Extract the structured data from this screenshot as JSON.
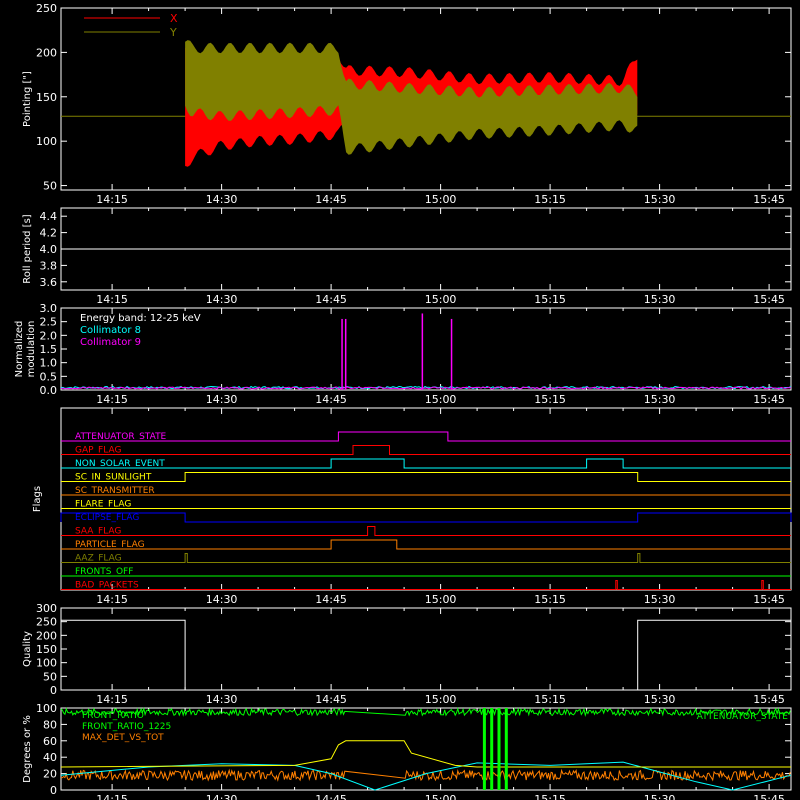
{
  "x_ticks": [
    "14:15",
    "14:30",
    "14:45",
    "15:00",
    "15:15",
    "15:30",
    "15:45"
  ],
  "chart_data": [
    {
      "type": "area",
      "ylabel": "Pointing [\"]",
      "ylim": [
        45,
        250
      ],
      "yticks": [
        "50",
        "100",
        "150",
        "200",
        "250"
      ],
      "baseline": 128,
      "series": [
        {
          "name": "X",
          "color": "#ff0000",
          "time": [
            "14:25",
            "14:26",
            "14:30",
            "14:35",
            "14:40",
            "14:46",
            "14:47",
            "14:55",
            "15:05",
            "15:15",
            "15:25",
            "15:27"
          ],
          "low": [
            72,
            82,
            95,
            100,
            102,
            108,
            120,
            115,
            125,
            128,
            132,
            125
          ],
          "high": [
            205,
            200,
            188,
            190,
            195,
            200,
            180,
            178,
            170,
            172,
            168,
            198
          ]
        },
        {
          "name": "Y",
          "color": "#808000",
          "time": [
            "14:25",
            "14:26",
            "14:30",
            "14:35",
            "14:40",
            "14:46",
            "14:47",
            "14:55",
            "15:05",
            "15:15",
            "15:25",
            "15:27"
          ],
          "low": [
            140,
            132,
            128,
            130,
            132,
            135,
            90,
            98,
            108,
            112,
            118,
            112
          ],
          "high": [
            212,
            205,
            205,
            205,
            205,
            205,
            165,
            160,
            155,
            158,
            160,
            155
          ]
        }
      ]
    },
    {
      "type": "line",
      "ylabel": "Roll period [s]",
      "ylim": [
        3.5,
        4.5
      ],
      "yticks": [
        "3.6",
        "3.8",
        "4.0",
        "4.2",
        "4.4"
      ],
      "series": [
        {
          "values_constant": 4.0
        }
      ]
    },
    {
      "type": "line",
      "ylabel": "Normalized modulation",
      "ylabel_lines": [
        "Normalized",
        "modulation"
      ],
      "ylim": [
        0,
        3
      ],
      "yticks": [
        "0.0",
        "0.5",
        "1.0",
        "1.5",
        "2.0",
        "2.5",
        "3.0"
      ],
      "legend": [
        {
          "label": "Energy band: 12-25 keV",
          "color": "#ffffff"
        },
        {
          "label": "Collimator 8",
          "color": "#00ffff"
        },
        {
          "label": "Collimator 9",
          "color": "#ff00ff"
        }
      ],
      "spikes": [
        {
          "time": "14:46.5",
          "value": 2.6
        },
        {
          "time": "14:47",
          "value": 2.6
        },
        {
          "time": "14:57.5",
          "value": 2.8
        },
        {
          "time": "15:01.5",
          "value": 2.6
        }
      ]
    },
    {
      "type": "line",
      "ylabel": "Flags",
      "flags": [
        {
          "label": "ATTENUATOR_STATE",
          "color": "#ff00ff",
          "on": [
            [
              "14:46",
              "15:01"
            ]
          ]
        },
        {
          "label": "GAP_FLAG",
          "color": "#ff0000",
          "on": [
            [
              "14:48",
              "14:53"
            ]
          ]
        },
        {
          "label": "NON_SOLAR_EVENT",
          "color": "#00ffff",
          "on": [
            [
              "14:45",
              "14:55"
            ],
            [
              "15:20",
              "15:25"
            ]
          ]
        },
        {
          "label": "SC_IN_SUNLIGHT",
          "color": "#ffff00",
          "on": [
            [
              "14:25",
              "15:27"
            ]
          ]
        },
        {
          "label": "SC_TRANSMITTER",
          "color": "#ff8000",
          "on": []
        },
        {
          "label": "FLARE_FLAG",
          "color": "#ffff00",
          "on": []
        },
        {
          "label": "ECLIPSE_FLAG",
          "color": "#0000ff",
          "on": [
            [
              "14:08",
              "14:25"
            ],
            [
              "15:27",
              "15:48"
            ]
          ]
        },
        {
          "label": "SAA_FLAG",
          "color": "#ff0000",
          "on": [
            [
              "14:50",
              "14:51"
            ]
          ]
        },
        {
          "label": "PARTICLE_FLAG",
          "color": "#ff8000",
          "on": [
            [
              "14:45",
              "14:54"
            ]
          ]
        },
        {
          "label": "AAZ_FLAG",
          "color": "#808000",
          "on": [
            [
              "14:25",
              "14:25.3"
            ],
            [
              "15:27",
              "15:27.3"
            ]
          ]
        },
        {
          "label": "FRONTS_OFF",
          "color": "#00ff00",
          "on": []
        },
        {
          "label": "BAD_PACKETS",
          "color": "#ff0000",
          "on": [
            [
              "15:24",
              "15:24.2"
            ],
            [
              "15:44",
              "15:44.2"
            ]
          ]
        }
      ]
    },
    {
      "type": "line",
      "ylabel": "Quality",
      "ylim": [
        0,
        300
      ],
      "yticks": [
        "0",
        "50",
        "100",
        "150",
        "200",
        "250",
        "300"
      ],
      "series": [
        {
          "time": [
            "14:08",
            "14:25",
            "14:25",
            "15:27",
            "15:27",
            "15:48"
          ],
          "values": [
            255,
            255,
            0,
            0,
            255,
            255
          ]
        }
      ]
    },
    {
      "type": "line",
      "ylabel": "Degrees or %",
      "ylim": [
        0,
        100
      ],
      "yticks": [
        "0",
        "20",
        "40",
        "60",
        "80",
        "100"
      ],
      "legend": [
        {
          "label": "FRONT_RATIO",
          "color": "#00ff00"
        },
        {
          "label": "FRONT_RATIO_1225",
          "color": "#00ff00"
        },
        {
          "label": "MAX_DET_VS_TOT",
          "color": "#ff8000"
        }
      ],
      "right_legend": "ATTENUATOR_STATE",
      "series": [
        {
          "name": "FRONT_RATIO",
          "color": "#00ff00",
          "level": 95
        },
        {
          "name": "MAX_DET_VS_TOT",
          "color": "#ff8000",
          "level": 18
        },
        {
          "name": "cyan",
          "color": "#00ffff",
          "time": [
            "14:08",
            "14:20",
            "14:30",
            "14:40",
            "14:45",
            "14:51",
            "14:58",
            "15:05",
            "15:15",
            "15:25",
            "15:35",
            "15:40",
            "15:48"
          ],
          "values": [
            18,
            28,
            32,
            30,
            20,
            0,
            20,
            33,
            30,
            34,
            10,
            0,
            18
          ]
        },
        {
          "name": "yellow",
          "color": "#ffff00",
          "time": [
            "14:08",
            "14:40",
            "14:45",
            "14:46",
            "14:47",
            "14:48",
            "14:55",
            "14:56",
            "15:02",
            "15:05",
            "15:48"
          ],
          "values": [
            28,
            30,
            38,
            55,
            60,
            60,
            60,
            45,
            30,
            28,
            28
          ]
        }
      ]
    }
  ]
}
